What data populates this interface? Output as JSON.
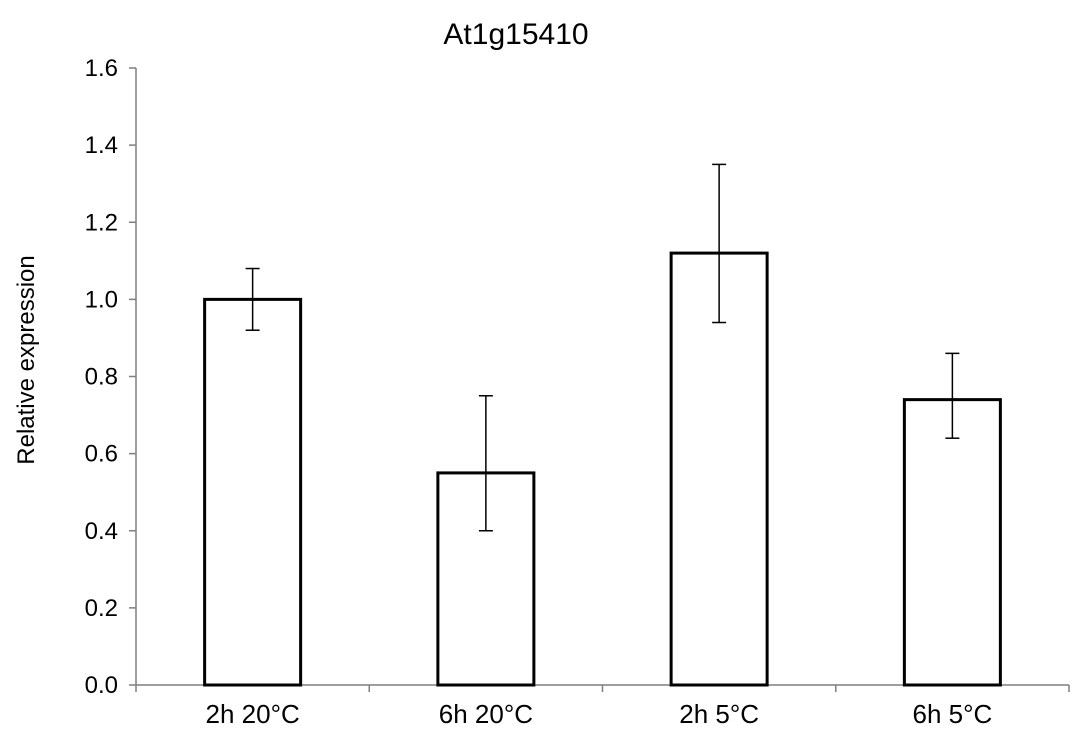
{
  "chart_data": {
    "type": "bar",
    "title": "At1g15410",
    "xlabel": "",
    "ylabel": "Relative expression",
    "categories": [
      "2h 20°C",
      "6h 20°C",
      "2h 5°C",
      "6h 5°C"
    ],
    "series": [
      {
        "values": [
          1.0,
          0.55,
          1.12,
          0.74
        ],
        "error_upper": [
          1.08,
          0.75,
          1.35,
          0.86
        ],
        "error_lower": [
          0.92,
          0.4,
          0.94,
          0.64
        ]
      }
    ],
    "ylim": [
      0,
      1.6
    ],
    "yticks": [
      0.0,
      0.2,
      0.4,
      0.6,
      0.8,
      1.0,
      1.2,
      1.4,
      1.6
    ],
    "ytick_labels": [
      "0.0",
      "0.2",
      "0.4",
      "0.6",
      "0.8",
      "1.0",
      "1.2",
      "1.4",
      "1.6"
    ],
    "grid": false,
    "legend": "none",
    "colors": {
      "bar_fill": "#ffffff",
      "bar_stroke": "#000000",
      "axis": "#7f7f7f",
      "error_bar": "#000000"
    }
  }
}
